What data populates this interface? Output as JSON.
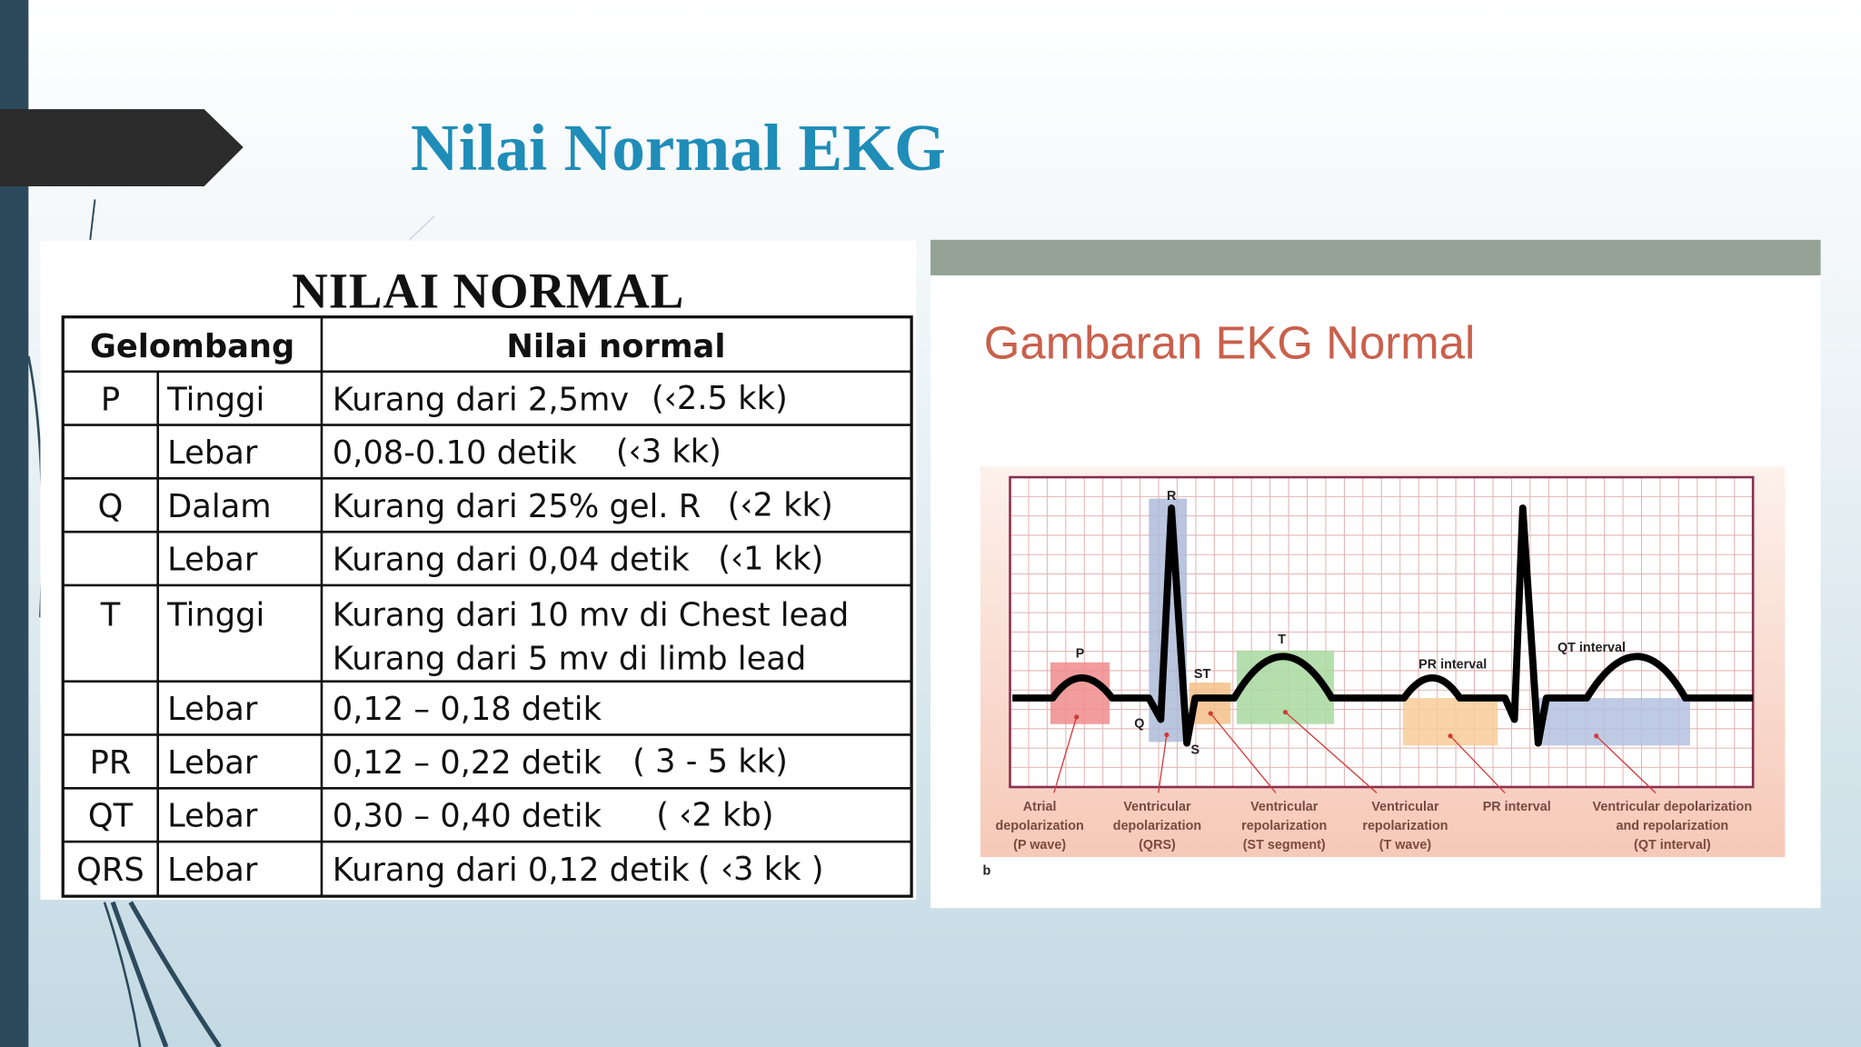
{
  "title": "Nilai Normal EKG",
  "table": {
    "title": "NILAI NORMAL",
    "header": [
      "Gelombang",
      "Nilai normal"
    ],
    "rows": [
      {
        "wave": "P",
        "measure": "Tinggi",
        "value": [
          "Kurang dari 2,5mv"
        ],
        "note": "(‹2.5 kk)"
      },
      {
        "measure": "Lebar",
        "value": [
          "0,08-0.10 detik"
        ],
        "note": "(‹3 kk)"
      },
      {
        "wave": "Q",
        "measure": "Dalam",
        "value": [
          "Kurang dari 25% gel. R"
        ],
        "note": "(‹2 kk)"
      },
      {
        "measure": "Lebar",
        "value": [
          "Kurang dari 0,04 detik"
        ],
        "note": "(‹1 kk)"
      },
      {
        "wave": "T",
        "measure": "Tinggi",
        "value": [
          "Kurang dari 10 mv di Chest lead",
          "Kurang dari 5 mv di limb lead"
        ]
      },
      {
        "measure": "Lebar",
        "value": [
          "0,12 – 0,18 detik"
        ]
      },
      {
        "wave": "PR",
        "measure": "Lebar",
        "value": [
          "0,12 – 0,22 detik"
        ],
        "note": "( 3 - 5 kk)"
      },
      {
        "wave": "QT",
        "measure": "Lebar",
        "value": [
          "0,30 – 0,40 detik"
        ],
        "note": "( ‹2 kb)"
      },
      {
        "wave": "QRS",
        "measure": "Lebar",
        "value": [
          "Kurang dari 0,12 detik"
        ],
        "note": "( ‹3 kk )"
      }
    ]
  },
  "figure": {
    "title": "Gambaran EKG Normal",
    "wave_labels": [
      "P",
      "R",
      "Q",
      "S",
      "ST",
      "T",
      "PR interval",
      "QT interval"
    ],
    "captions": [
      [
        "Atrial",
        "depolarization",
        "(P wave)"
      ],
      [
        "Ventricular",
        "depolarization",
        "(QRS)"
      ],
      [
        "Ventricular",
        "repolarization",
        "(ST segment)"
      ],
      [
        "Ventricular",
        "repolarization",
        "(T wave)"
      ],
      [
        "PR interval"
      ],
      [
        "Ventricular depolarization",
        "and repolarization",
        "(QT interval)"
      ]
    ],
    "panel": "b"
  }
}
